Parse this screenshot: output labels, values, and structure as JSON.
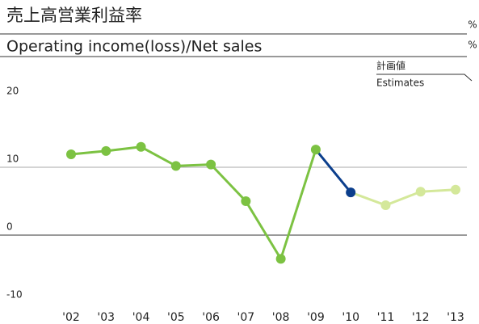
{
  "chart_data": {
    "type": "line",
    "title": "売上高営業利益率",
    "subtitle": "Operating income(loss)/Net sales",
    "units": [
      "%",
      "%"
    ],
    "annotation": {
      "ja": "計画値",
      "en": "Estimates"
    },
    "categories": [
      "'02",
      "'03",
      "'04",
      "'05",
      "'06",
      "'07",
      "'08",
      "'09",
      "'10",
      "'11",
      "'12",
      "'13"
    ],
    "values": [
      11.9,
      12.4,
      13.0,
      10.2,
      10.4,
      5.0,
      -3.5,
      12.6,
      6.3,
      4.4,
      6.4,
      6.7
    ],
    "segment_colors": [
      "#7cc242",
      "#7cc242",
      "#7cc242",
      "#7cc242",
      "#7cc242",
      "#7cc242",
      "#7cc242",
      "#0b3e8c",
      "#d4e89a",
      "#d4e89a",
      "#d4e89a"
    ],
    "point_colors": [
      "#7cc242",
      "#7cc242",
      "#7cc242",
      "#7cc242",
      "#7cc242",
      "#7cc242",
      "#7cc242",
      "#7cc242",
      "#0b3e8c",
      "#d4e89a",
      "#d4e89a",
      "#d4e89a"
    ],
    "ylim": [
      -10,
      20
    ],
    "yticks": [
      20,
      10,
      0,
      -10
    ],
    "grid": true
  }
}
